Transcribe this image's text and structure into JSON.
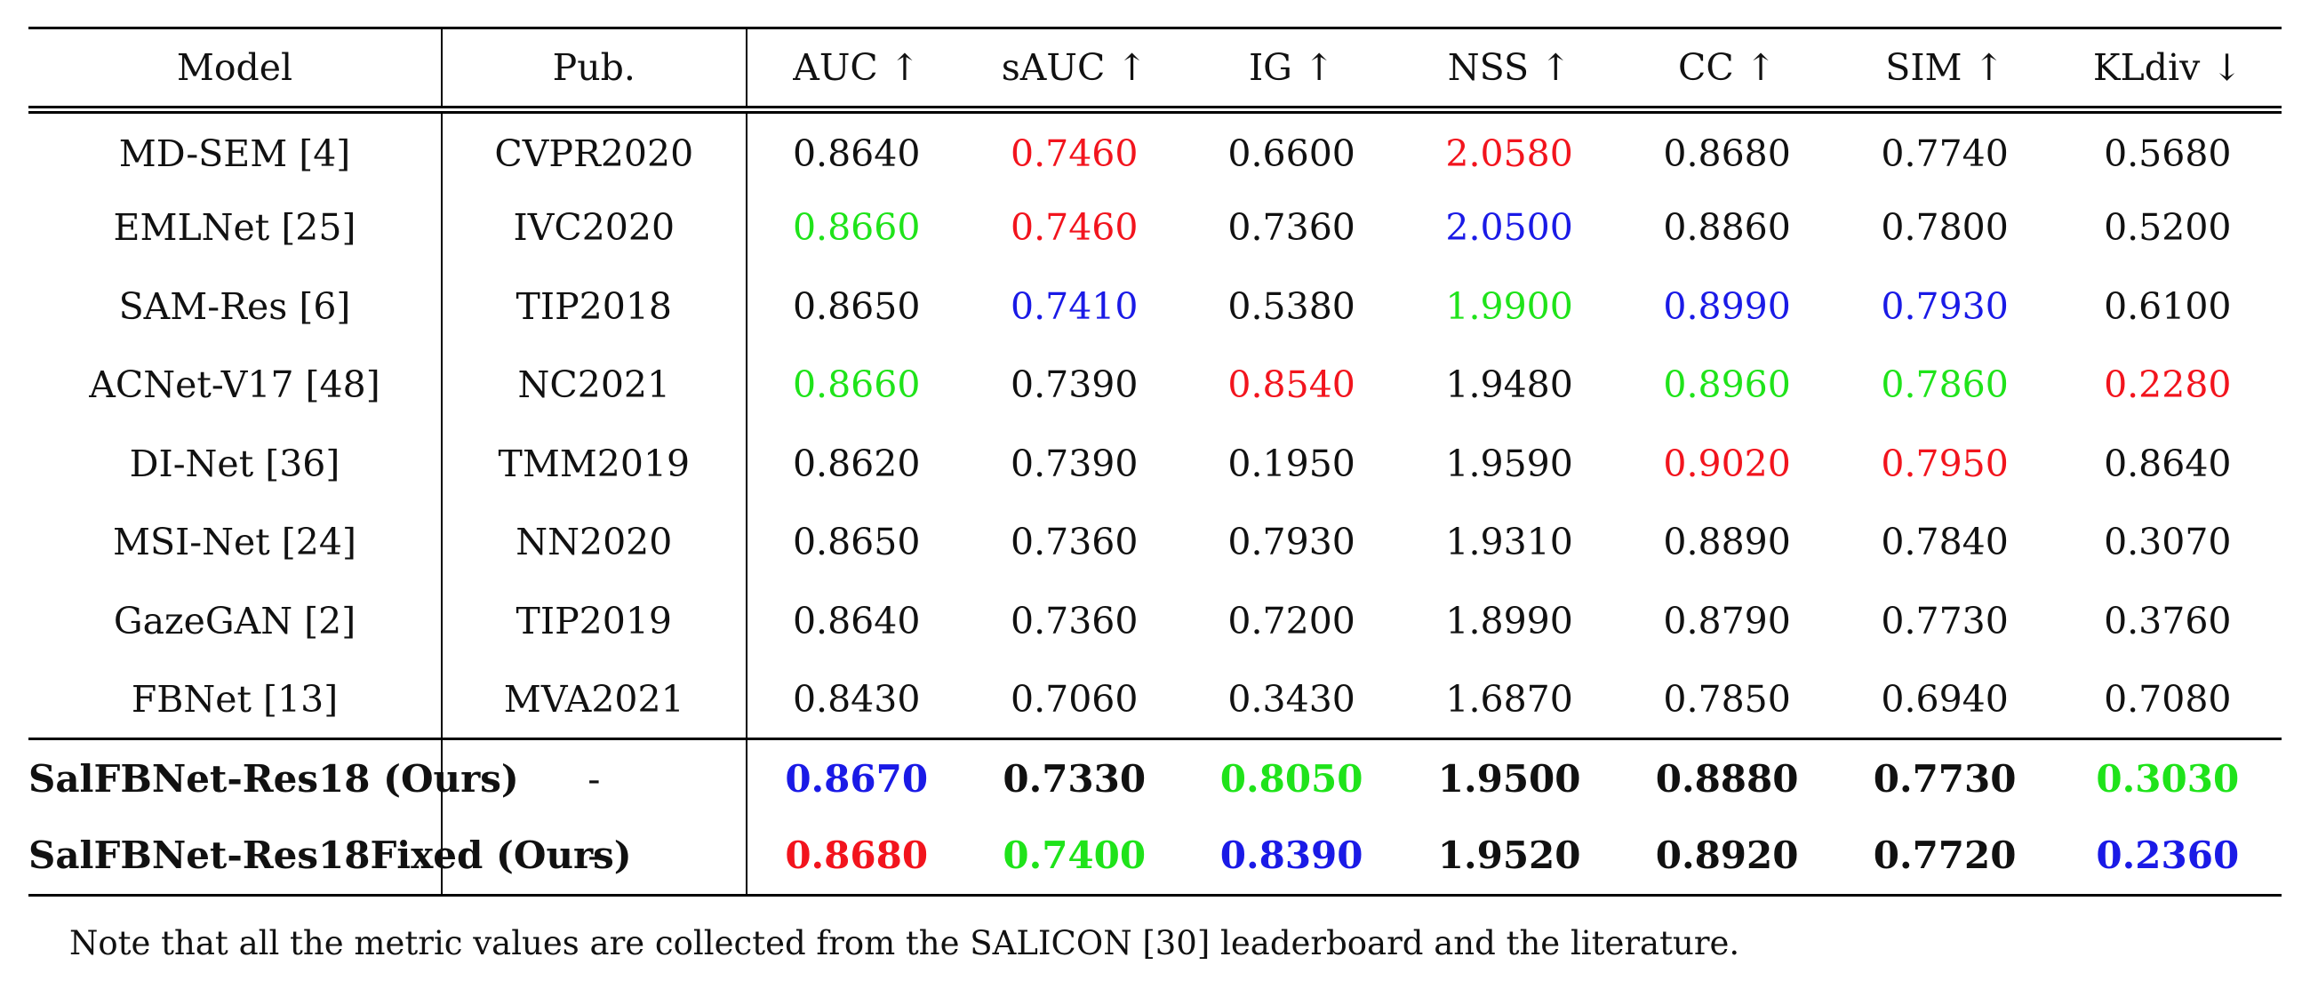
{
  "table": {
    "headers": [
      "Model",
      "Pub.",
      "AUC ↑",
      "sAUC ↑",
      "IG ↑",
      "NSS ↑",
      "CC ↑",
      "SIM ↑",
      "KLdiv ↓"
    ],
    "colors": {
      "red": "#f2141d",
      "green": "#1fe31a",
      "blue": "#1a1ae6",
      "default": "#111111"
    },
    "rows": [
      {
        "model": "MD-SEM [4]",
        "pub": "CVPR2020",
        "values": [
          "0.8640",
          "0.7460",
          "0.6600",
          "2.0580",
          "0.8680",
          "0.7740",
          "0.5680"
        ],
        "highlights": [
          "",
          "red",
          "",
          "red",
          "",
          "",
          ""
        ]
      },
      {
        "model": "EMLNet [25]",
        "pub": "IVC2020",
        "values": [
          "0.8660",
          "0.7460",
          "0.7360",
          "2.0500",
          "0.8860",
          "0.7800",
          "0.5200"
        ],
        "highlights": [
          "green",
          "red",
          "",
          "blue",
          "",
          "",
          ""
        ]
      },
      {
        "model": "SAM-Res [6]",
        "pub": "TIP2018",
        "values": [
          "0.8650",
          "0.7410",
          "0.5380",
          "1.9900",
          "0.8990",
          "0.7930",
          "0.6100"
        ],
        "highlights": [
          "",
          "blue",
          "",
          "green",
          "blue",
          "blue",
          ""
        ]
      },
      {
        "model": "ACNet-V17 [48]",
        "pub": "NC2021",
        "values": [
          "0.8660",
          "0.7390",
          "0.8540",
          "1.9480",
          "0.8960",
          "0.7860",
          "0.2280"
        ],
        "highlights": [
          "green",
          "",
          "red",
          "",
          "green",
          "green",
          "red"
        ]
      },
      {
        "model": "DI-Net [36]",
        "pub": "TMM2019",
        "values": [
          "0.8620",
          "0.7390",
          "0.1950",
          "1.9590",
          "0.9020",
          "0.7950",
          "0.8640"
        ],
        "highlights": [
          "",
          "",
          "",
          "",
          "red",
          "red",
          ""
        ]
      },
      {
        "model": "MSI-Net [24]",
        "pub": "NN2020",
        "values": [
          "0.8650",
          "0.7360",
          "0.7930",
          "1.9310",
          "0.8890",
          "0.7840",
          "0.3070"
        ],
        "highlights": [
          "",
          "",
          "",
          "",
          "",
          "",
          ""
        ]
      },
      {
        "model": "GazeGAN [2]",
        "pub": "TIP2019",
        "values": [
          "0.8640",
          "0.7360",
          "0.7200",
          "1.8990",
          "0.8790",
          "0.7730",
          "0.3760"
        ],
        "highlights": [
          "",
          "",
          "",
          "",
          "",
          "",
          ""
        ]
      },
      {
        "model": "FBNet [13]",
        "pub": "MVA2021",
        "values": [
          "0.8430",
          "0.7060",
          "0.3430",
          "1.6870",
          "0.7850",
          "0.6940",
          "0.7080"
        ],
        "highlights": [
          "",
          "",
          "",
          "",
          "",
          "",
          ""
        ]
      }
    ],
    "ours": [
      {
        "model": "SalFBNet-Res18 (Ours)",
        "pub": "-",
        "values": [
          "0.8670",
          "0.7330",
          "0.8050",
          "1.9500",
          "0.8880",
          "0.7730",
          "0.3030"
        ],
        "highlights": [
          "blue",
          "",
          "green",
          "",
          "",
          "",
          "green"
        ]
      },
      {
        "model": "SalFBNet-Res18Fixed (Ours)",
        "pub": "-",
        "values": [
          "0.8680",
          "0.7400",
          "0.8390",
          "1.9520",
          "0.8920",
          "0.7720",
          "0.2360"
        ],
        "highlights": [
          "red",
          "green",
          "blue",
          "",
          "",
          "",
          "blue"
        ]
      }
    ]
  },
  "note": "Note that all the metric values are collected from the SALICON [30] leaderboard and the literature."
}
